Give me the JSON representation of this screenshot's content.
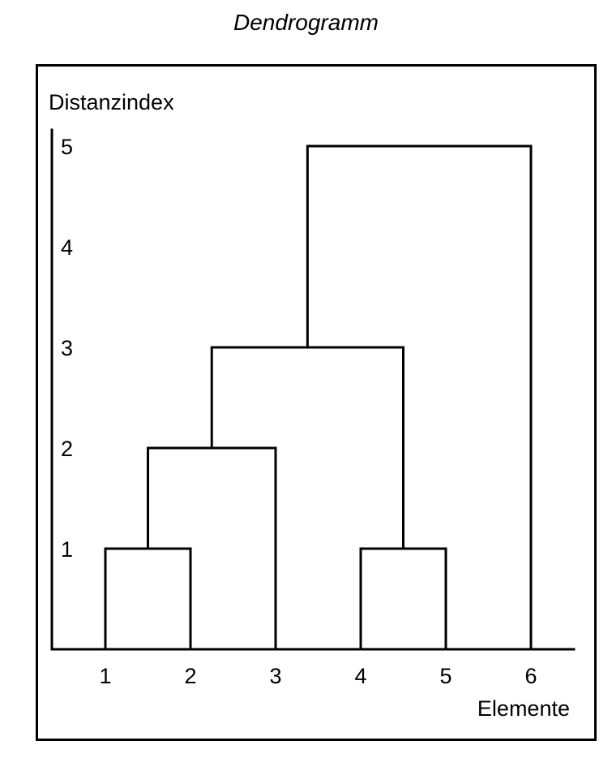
{
  "chart_data": {
    "type": "dendrogram",
    "title": "Dendrogramm",
    "ylabel": "Distanzindex",
    "xlabel": "Elemente",
    "y_ticks": [
      "1",
      "2",
      "3",
      "4",
      "5"
    ],
    "leaves": [
      "1",
      "2",
      "3",
      "4",
      "5",
      "6"
    ],
    "ylim": [
      0,
      5
    ],
    "merges": [
      {
        "left": "1",
        "right": "2",
        "height": 1
      },
      {
        "left": "4",
        "right": "5",
        "height": 1
      },
      {
        "left": "1,2",
        "right": "3",
        "height": 2
      },
      {
        "left": "1,2,3",
        "right": "4,5",
        "height": 3
      },
      {
        "left": "1,2,3,4,5",
        "right": "6",
        "height": 5
      }
    ]
  }
}
